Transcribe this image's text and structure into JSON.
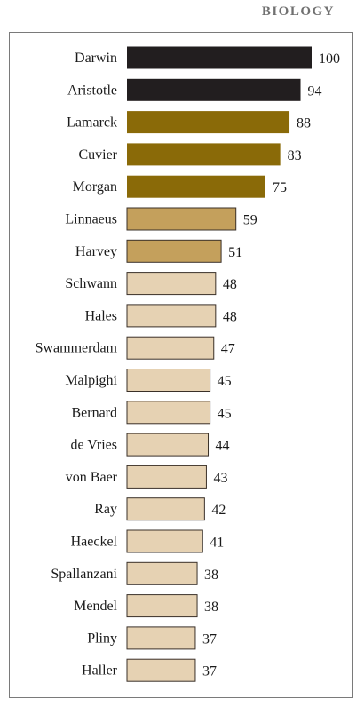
{
  "chart_data": {
    "type": "bar",
    "orientation": "horizontal",
    "title": "BIOLOGY",
    "categories": [
      "Darwin",
      "Aristotle",
      "Lamarck",
      "Cuvier",
      "Morgan",
      "Linnaeus",
      "Harvey",
      "Schwann",
      "Hales",
      "Swammerdam",
      "Malpighi",
      "Bernard",
      "de Vries",
      "von Baer",
      "Ray",
      "Haeckel",
      "Spallanzani",
      "Mendel",
      "Pliny",
      "Haller"
    ],
    "values": [
      100,
      94,
      88,
      83,
      75,
      59,
      51,
      48,
      48,
      47,
      45,
      45,
      44,
      43,
      42,
      41,
      38,
      38,
      37,
      37
    ],
    "tiers": [
      "dark",
      "dark",
      "gold",
      "gold",
      "gold",
      "tan",
      "tan",
      "light",
      "light",
      "light",
      "light",
      "light",
      "light",
      "light",
      "light",
      "light",
      "light",
      "light",
      "light",
      "light"
    ],
    "colors": {
      "dark": "#221e1f",
      "gold": "#8a6a08",
      "tan": "#c4a05c",
      "light": "#e6d2b3"
    },
    "xlim": [
      0,
      100
    ],
    "grid": false,
    "legend": "none"
  }
}
